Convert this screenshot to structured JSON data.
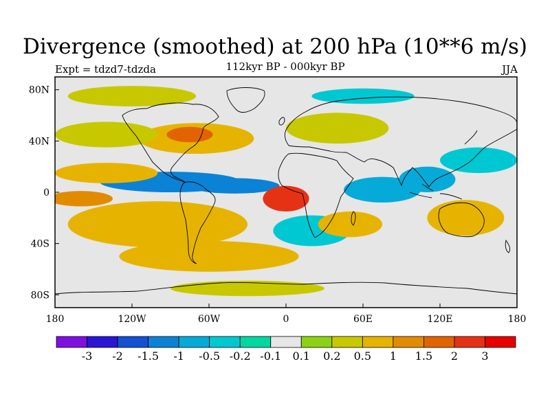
{
  "chart_data": {
    "type": "heatmap",
    "title": "Divergence (smoothed) at 200 hPa (10**6 m/s)",
    "subtitle": "112kyr BP - 000kyr BP",
    "left_label": "Expt = tdzd7-tdzda",
    "right_label": "JJA",
    "x_ticks": [
      {
        "lon": -180,
        "label": "180"
      },
      {
        "lon": -120,
        "label": "120W"
      },
      {
        "lon": -60,
        "label": "60W"
      },
      {
        "lon": 0,
        "label": "0"
      },
      {
        "lon": 60,
        "label": "60E"
      },
      {
        "lon": 120,
        "label": "120E"
      },
      {
        "lon": 180,
        "label": "180"
      }
    ],
    "y_ticks": [
      {
        "lat": 80,
        "label": "80N"
      },
      {
        "lat": 40,
        "label": "40N"
      },
      {
        "lat": 0,
        "label": "0"
      },
      {
        "lat": -40,
        "label": "40S"
      },
      {
        "lat": -80,
        "label": "80S"
      }
    ],
    "xlim": [
      -180,
      180
    ],
    "ylim": [
      -90,
      90
    ],
    "colorbar": {
      "colors": [
        "#7f0fe0",
        "#2a14d6",
        "#1450d2",
        "#0a82d6",
        "#05aad8",
        "#00c8d2",
        "#00d7a0",
        "#e6e6e6",
        "#8cd214",
        "#c8c800",
        "#e6b400",
        "#e18c00",
        "#e16400",
        "#e63214",
        "#e60000"
      ],
      "labels": [
        "-3",
        "-2",
        "-1.5",
        "-1",
        "-0.5",
        "-0.2",
        "-0.1",
        "0.1",
        "0.2",
        "0.5",
        "1",
        "1.5",
        "2",
        "3"
      ]
    },
    "features": [
      {
        "lon": -90,
        "lat": 8,
        "rx": 55,
        "ry": 8,
        "value": -1.5
      },
      {
        "lon": -40,
        "lat": 5,
        "rx": 35,
        "ry": 6,
        "value": -1.5
      },
      {
        "lon": -100,
        "lat": -25,
        "rx": 70,
        "ry": 18,
        "value": 0.6
      },
      {
        "lon": -60,
        "lat": -50,
        "rx": 70,
        "ry": 12,
        "value": 0.5
      },
      {
        "lon": -140,
        "lat": 15,
        "rx": 40,
        "ry": 8,
        "value": 0.6
      },
      {
        "lon": -160,
        "lat": -5,
        "rx": 25,
        "ry": 6,
        "value": 1.0
      },
      {
        "lon": -70,
        "lat": 42,
        "rx": 45,
        "ry": 12,
        "value": 0.7
      },
      {
        "lon": -75,
        "lat": 45,
        "rx": 18,
        "ry": 6,
        "value": 1.5
      },
      {
        "lon": -140,
        "lat": 45,
        "rx": 40,
        "ry": 10,
        "value": 0.3
      },
      {
        "lon": 0,
        "lat": -5,
        "rx": 18,
        "ry": 10,
        "value": 2.0
      },
      {
        "lon": 20,
        "lat": -30,
        "rx": 30,
        "ry": 12,
        "value": -0.5
      },
      {
        "lon": 50,
        "lat": -25,
        "rx": 25,
        "ry": 10,
        "value": 0.6
      },
      {
        "lon": 75,
        "lat": 2,
        "rx": 30,
        "ry": 10,
        "value": -0.7
      },
      {
        "lon": 110,
        "lat": 10,
        "rx": 22,
        "ry": 10,
        "value": -0.8
      },
      {
        "lon": 140,
        "lat": -20,
        "rx": 30,
        "ry": 14,
        "value": 0.6
      },
      {
        "lon": 150,
        "lat": 25,
        "rx": 30,
        "ry": 10,
        "value": -0.4
      },
      {
        "lon": 40,
        "lat": 50,
        "rx": 40,
        "ry": 12,
        "value": 0.3
      },
      {
        "lon": -120,
        "lat": 75,
        "rx": 50,
        "ry": 8,
        "value": 0.3
      },
      {
        "lon": 60,
        "lat": 75,
        "rx": 40,
        "ry": 6,
        "value": -0.4
      },
      {
        "lon": -30,
        "lat": -75,
        "rx": 60,
        "ry": 6,
        "value": 0.4
      }
    ]
  }
}
